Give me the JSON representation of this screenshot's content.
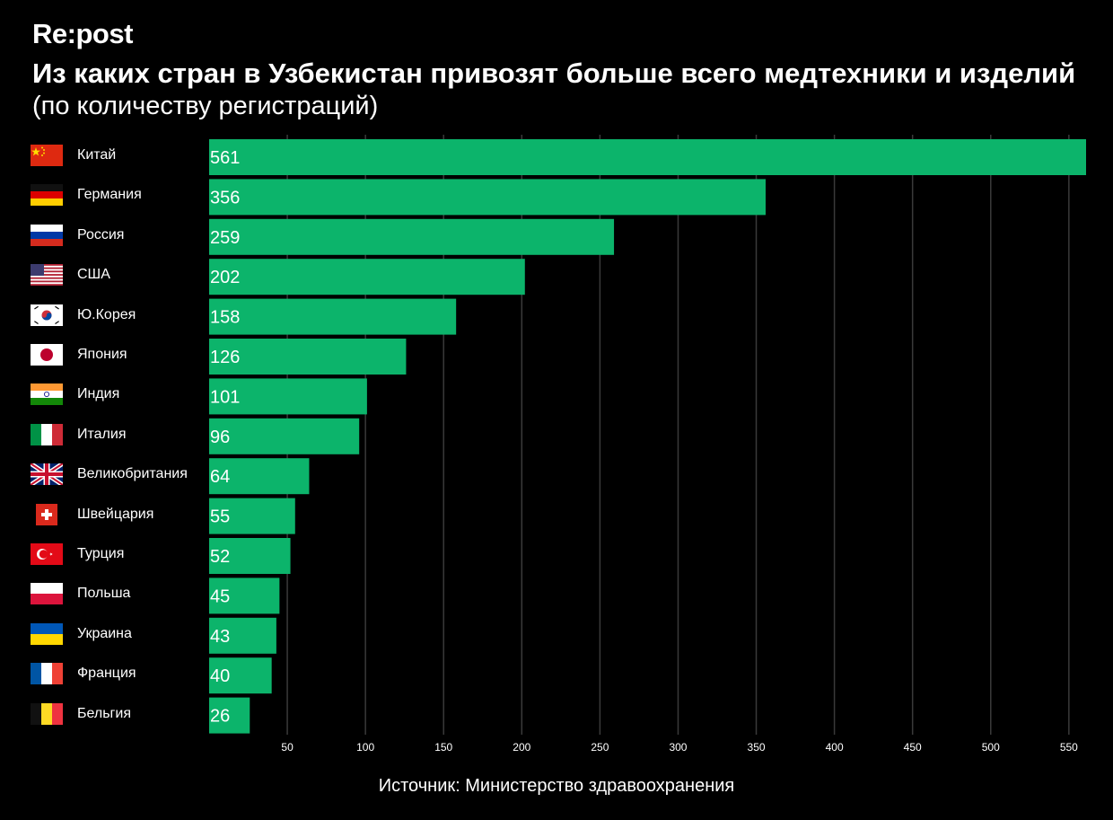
{
  "brand": "Re:post",
  "title": "Из каких стран в Узбекистан привозят больше всего медтехники и изделий",
  "subtitle": "(по количеству регистраций)",
  "source": "Источник: Министерство здравоохранения",
  "colors": {
    "background": "#000000",
    "bar": "#0cb46b",
    "grid": "#3a3a3a",
    "text": "#ffffff"
  },
  "chart_data": {
    "type": "bar",
    "orientation": "horizontal",
    "categories": [
      "Китай",
      "Германия",
      "Россия",
      "США",
      "Ю.Корея",
      "Япония",
      "Индия",
      "Италия",
      "Великобритания",
      "Швейцария",
      "Турция",
      "Польша",
      "Украина",
      "Франция",
      "Бельгия"
    ],
    "values": [
      561,
      356,
      259,
      202,
      158,
      126,
      101,
      96,
      64,
      55,
      52,
      45,
      43,
      40,
      26
    ],
    "flags": [
      "china-flag-icon",
      "germany-flag-icon",
      "russia-flag-icon",
      "usa-flag-icon",
      "south-korea-flag-icon",
      "japan-flag-icon",
      "india-flag-icon",
      "italy-flag-icon",
      "uk-flag-icon",
      "switzerland-flag-icon",
      "turkey-flag-icon",
      "poland-flag-icon",
      "ukraine-flag-icon",
      "france-flag-icon",
      "belgium-flag-icon"
    ],
    "xticks": [
      50,
      100,
      150,
      200,
      250,
      300,
      350,
      400,
      450,
      500,
      550
    ],
    "xlim": [
      0,
      561
    ],
    "grid": true
  }
}
